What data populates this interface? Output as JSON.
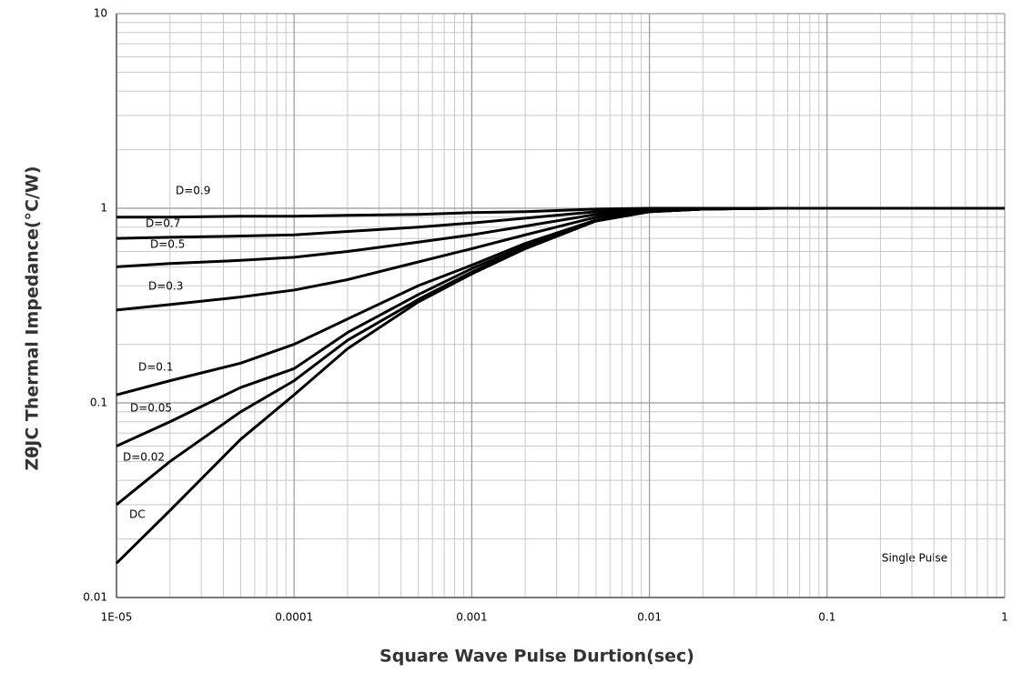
{
  "chart_data": {
    "type": "line",
    "xlabel": "Square Wave Pulse Durtion(sec)",
    "ylabel": "ZθJC Thermal Impedance(°C/W)",
    "annotations": [
      "Single Pulse"
    ],
    "xscale": "log",
    "yscale": "log",
    "grid": true,
    "minor_grid": true,
    "xlim": [
      1e-05,
      1
    ],
    "ylim": [
      0.01,
      10
    ],
    "xticks": [
      {
        "value": 1e-05,
        "label": "1E-05"
      },
      0.0001,
      0.001,
      0.01,
      0.1,
      1
    ],
    "yticks": [
      0.01,
      0.1,
      1,
      10
    ],
    "x": [
      1e-05,
      2e-05,
      5e-05,
      0.0001,
      0.0002,
      0.0005,
      0.001,
      0.002,
      0.005,
      0.01,
      0.02,
      0.05,
      0.1,
      0.2,
      0.5,
      1
    ],
    "series": [
      {
        "name": "D=0.9",
        "color": "#000000",
        "values": [
          0.9,
          0.9,
          0.91,
          0.91,
          0.92,
          0.93,
          0.95,
          0.96,
          0.99,
          1.0,
          1,
          1,
          1,
          1,
          1,
          1
        ]
      },
      {
        "name": "D=0.7",
        "color": "#000000",
        "values": [
          0.7,
          0.71,
          0.72,
          0.73,
          0.76,
          0.8,
          0.84,
          0.89,
          0.96,
          0.99,
          1,
          1,
          1,
          1,
          1,
          1
        ]
      },
      {
        "name": "D=0.5",
        "color": "#000000",
        "values": [
          0.5,
          0.52,
          0.54,
          0.56,
          0.6,
          0.67,
          0.73,
          0.81,
          0.93,
          0.98,
          1,
          1,
          1,
          1,
          1,
          1
        ]
      },
      {
        "name": "D=0.3",
        "color": "#000000",
        "values": [
          0.3,
          0.32,
          0.35,
          0.38,
          0.43,
          0.53,
          0.62,
          0.73,
          0.9,
          0.97,
          0.99,
          1,
          1,
          1,
          1,
          1
        ]
      },
      {
        "name": "D=0.1",
        "color": "#000000",
        "values": [
          0.11,
          0.13,
          0.16,
          0.2,
          0.27,
          0.4,
          0.51,
          0.66,
          0.87,
          0.96,
          0.99,
          1,
          1,
          1,
          1,
          1
        ]
      },
      {
        "name": "D=0.05",
        "color": "#000000",
        "values": [
          0.06,
          0.08,
          0.12,
          0.15,
          0.23,
          0.36,
          0.49,
          0.64,
          0.87,
          0.96,
          0.99,
          1,
          1,
          1,
          1,
          1
        ]
      },
      {
        "name": "D=0.02",
        "color": "#000000",
        "values": [
          0.03,
          0.05,
          0.09,
          0.13,
          0.21,
          0.34,
          0.47,
          0.63,
          0.86,
          0.96,
          0.99,
          1,
          1,
          1,
          1,
          1
        ]
      },
      {
        "name": "DC",
        "color": "#000000",
        "values": [
          0.015,
          0.028,
          0.065,
          0.11,
          0.19,
          0.33,
          0.46,
          0.62,
          0.86,
          0.96,
          0.99,
          1,
          1,
          1,
          1,
          1
        ]
      }
    ]
  }
}
